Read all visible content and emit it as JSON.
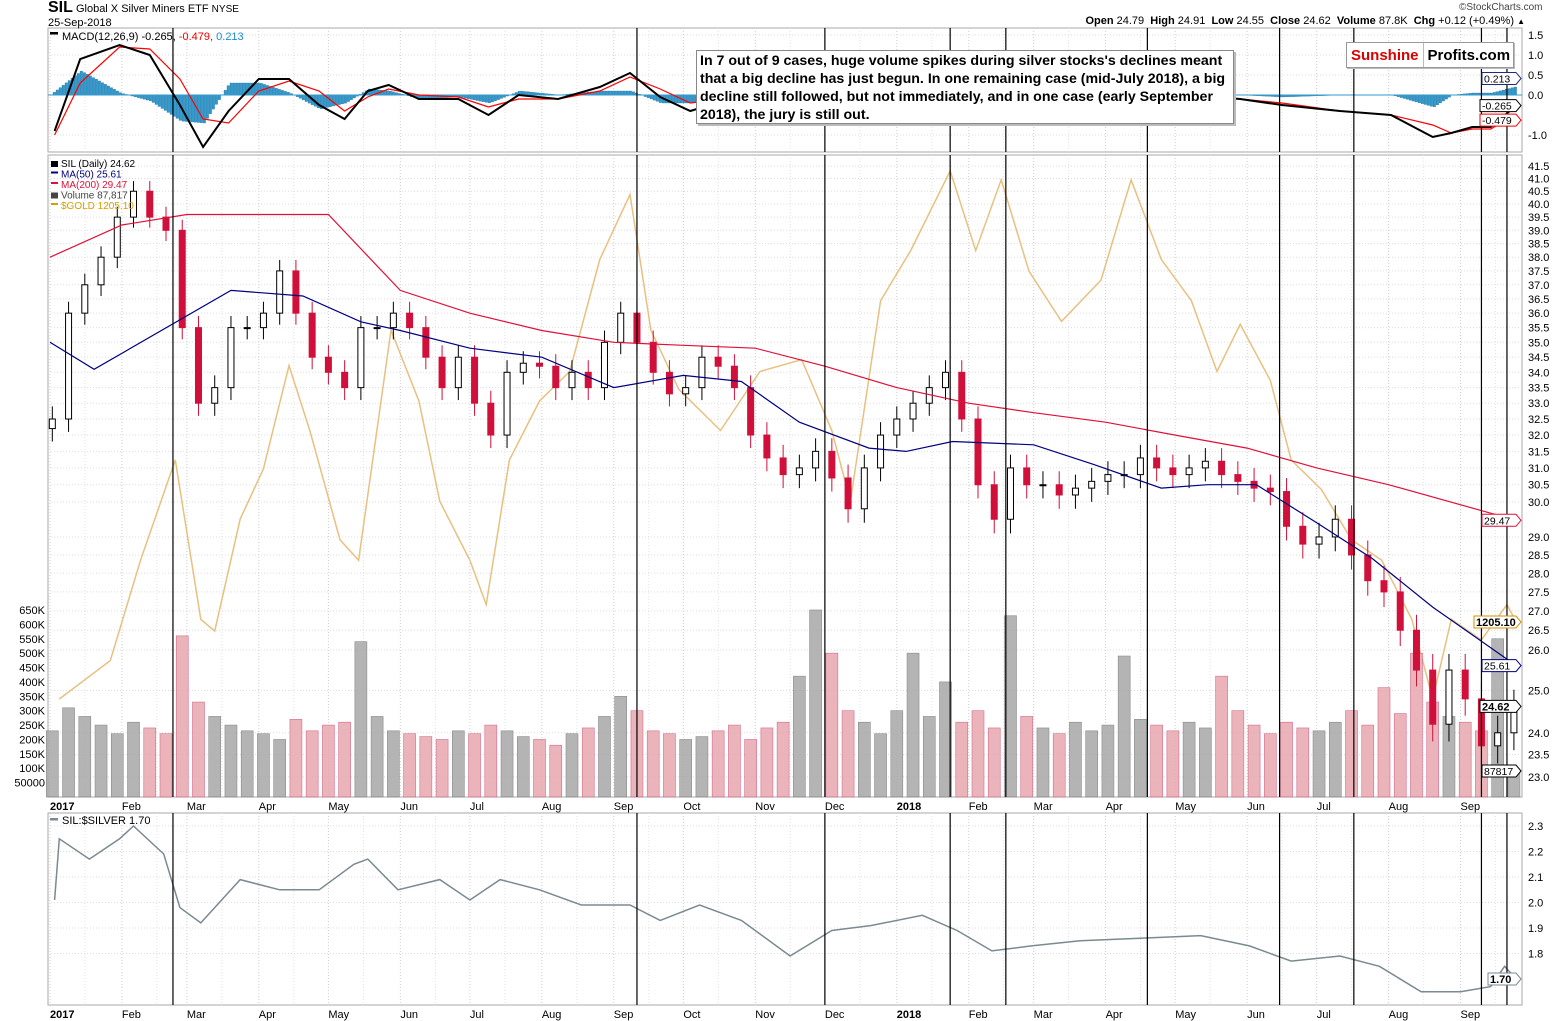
{
  "header": {
    "symbol": "SIL",
    "name": "Global X Silver Miners ETF",
    "exchange": "NYSE",
    "date": "25-Sep-2018",
    "copyright": "©StockCharts.com",
    "open_label": "Open",
    "open": "24.79",
    "high_label": "High",
    "high": "24.91",
    "low_label": "Low",
    "low": "24.55",
    "close_label": "Close",
    "close": "24.62",
    "volume_label": "Volume",
    "volume": "87.8K",
    "chg_label": "Chg",
    "chg": "+0.12 (+0.49%)",
    "chg_icon": "triangle-up-icon"
  },
  "annotation": "In 7 out of 9 cases, huge volume spikes during silver stocks's declines meant that a big decline has just begun. In one remaining case (mid-July 2018), a big decline still followed, but not immediately, and in one case (early September 2018), the jury is still out.",
  "logo": {
    "part1": "Sunshine",
    "part2": "Profits.com"
  },
  "colors": {
    "macd": "#000000",
    "signal": "#ff0000",
    "histogram": "#3399cc",
    "up_candle": "#000000",
    "down_candle": "#d0103a",
    "ma50": "#000080",
    "ma200": "#e0103a",
    "gold": "#e8c080",
    "volume_up": "#a8a8a8",
    "volume_down": "#e8a8b0",
    "ratio": "#7a8a90",
    "event_line": "#000000"
  },
  "chart_data": [
    {
      "type": "line",
      "panel": "macd",
      "legend": {
        "label": "MACD(12,26,9)",
        "macd": "-0.265",
        "signal": "-0.479",
        "histogram": "0.213"
      },
      "ylim": [
        -1.3,
        1.6
      ],
      "y_ticks": [
        "1.5",
        "1.0",
        "0.5",
        "0.0",
        "-1.0"
      ],
      "tags": {
        "histogram": "0.213",
        "macd": "-0.265",
        "signal": "-0.479"
      },
      "dates": [
        "2017-01-03",
        "2017-01-14",
        "2017-01-31",
        "2017-02-13",
        "2017-02-26",
        "2017-03-08",
        "2017-03-19",
        "2017-04-01",
        "2017-04-14",
        "2017-04-27",
        "2017-05-08",
        "2017-05-18",
        "2017-05-27",
        "2017-06-09",
        "2017-06-26",
        "2017-07-09",
        "2017-07-22",
        "2017-08-08",
        "2017-08-26",
        "2017-09-08",
        "2017-09-21",
        "2017-10-04",
        "2017-10-26",
        "2017-11-16",
        "2017-12-04",
        "2017-12-25",
        "2018-01-16",
        "2018-02-04",
        "2018-02-28",
        "2018-03-30",
        "2018-04-25",
        "2018-05-29",
        "2018-06-16",
        "2018-07-11",
        "2018-08-02",
        "2018-08-20",
        "2018-08-28",
        "2018-09-06",
        "2018-09-14",
        "2018-09-25"
      ],
      "series": [
        {
          "name": "MACD",
          "values": [
            -0.9,
            0.9,
            1.25,
            1.0,
            -0.25,
            -1.3,
            -0.4,
            0.4,
            0.4,
            -0.25,
            -0.6,
            0.1,
            0.25,
            -0.1,
            -0.1,
            -0.5,
            0,
            -0.1,
            0.2,
            0.55,
            -0.05,
            -0.4,
            0.0,
            -0.5,
            -0.4,
            0.25,
            0.4,
            -0.4,
            -0.3,
            0.0,
            0.05,
            -0.1,
            -0.25,
            -0.4,
            -0.5,
            -1.05,
            -0.95,
            -0.8,
            -0.8,
            -0.265
          ]
        },
        {
          "name": "Signal",
          "values": [
            -1.0,
            0.3,
            1.2,
            1.15,
            0.4,
            -0.6,
            -0.7,
            0.1,
            0.35,
            0.1,
            -0.4,
            -0.05,
            0.15,
            0.0,
            -0.05,
            -0.3,
            -0.1,
            -0.1,
            0.1,
            0.45,
            0.15,
            -0.2,
            -0.05,
            -0.4,
            -0.3,
            0.0,
            0.25,
            0.0,
            -0.2,
            -0.2,
            0.0,
            -0.1,
            -0.2,
            -0.4,
            -0.5,
            -0.75,
            -0.95,
            -0.85,
            -0.85,
            -0.479
          ]
        }
      ]
    },
    {
      "type": "candlestick",
      "panel": "price",
      "scale": "log",
      "legend": [
        {
          "label": "SIL (Daily) 24.62",
          "icon": "candlestick-icon"
        },
        {
          "label": "MA(50) 25.61"
        },
        {
          "label": "MA(200) 29.47"
        },
        {
          "label": "Volume 87,817",
          "icon": "volume-bars-icon"
        },
        {
          "label": "$GOLD 1205.10"
        }
      ],
      "ylim": [
        23.0,
        41.5
      ],
      "y_ticks": [
        "41.5",
        "41.0",
        "40.5",
        "40.0",
        "39.5",
        "39.0",
        "38.5",
        "38.0",
        "37.5",
        "37.0",
        "36.5",
        "36.0",
        "35.5",
        "35.0",
        "34.5",
        "34.0",
        "33.5",
        "33.0",
        "32.5",
        "32.0",
        "31.5",
        "31.0",
        "30.5",
        "30.0",
        "29.0",
        "28.5",
        "28.0",
        "27.5",
        "27.0",
        "26.5",
        "26.0",
        "25.0",
        "24.0",
        "23.5",
        "23.0"
      ],
      "volume_ticks": [
        "650K",
        "600K",
        "550K",
        "500K",
        "450K",
        "400K",
        "350K",
        "300K",
        "250K",
        "200K",
        "150K",
        "100K",
        "50000"
      ],
      "tags": {
        "ma200": "29.47",
        "gold": "1205.10",
        "ma50": "25.61",
        "close": "24.62",
        "volume": "87817"
      },
      "x_labels": [
        {
          "date": "2017-01-01",
          "label": "2017",
          "bold": true
        },
        {
          "date": "2017-02-01",
          "label": "Feb"
        },
        {
          "date": "2017-03-01",
          "label": "Mar"
        },
        {
          "date": "2017-04-01",
          "label": "Apr"
        },
        {
          "date": "2017-05-01",
          "label": "May"
        },
        {
          "date": "2017-06-01",
          "label": "Jun"
        },
        {
          "date": "2017-07-01",
          "label": "Jul"
        },
        {
          "date": "2017-08-01",
          "label": "Aug"
        },
        {
          "date": "2017-09-01",
          "label": "Sep"
        },
        {
          "date": "2017-10-01",
          "label": "Oct"
        },
        {
          "date": "2017-11-01",
          "label": "Nov"
        },
        {
          "date": "2017-12-01",
          "label": "Dec"
        },
        {
          "date": "2018-01-01",
          "label": "2018",
          "bold": true
        },
        {
          "date": "2018-02-01",
          "label": "Feb"
        },
        {
          "date": "2018-03-01",
          "label": "Mar"
        },
        {
          "date": "2018-04-01",
          "label": "Apr"
        },
        {
          "date": "2018-05-01",
          "label": "May"
        },
        {
          "date": "2018-06-01",
          "label": "Jun"
        },
        {
          "date": "2018-07-01",
          "label": "Jul"
        },
        {
          "date": "2018-08-01",
          "label": "Aug"
        },
        {
          "date": "2018-09-01",
          "label": "Sep"
        }
      ],
      "weekly_dates": [
        "2017-01-02",
        "2017-01-09",
        "2017-01-16",
        "2017-01-23",
        "2017-01-30",
        "2017-02-06",
        "2017-02-13",
        "2017-02-20",
        "2017-02-27",
        "2017-03-06",
        "2017-03-13",
        "2017-03-20",
        "2017-03-27",
        "2017-04-03",
        "2017-04-10",
        "2017-04-17",
        "2017-04-24",
        "2017-05-01",
        "2017-05-08",
        "2017-05-15",
        "2017-05-22",
        "2017-05-29",
        "2017-06-05",
        "2017-06-12",
        "2017-06-19",
        "2017-06-26",
        "2017-07-03",
        "2017-07-10",
        "2017-07-17",
        "2017-07-24",
        "2017-07-31",
        "2017-08-07",
        "2017-08-14",
        "2017-08-21",
        "2017-08-28",
        "2017-09-04",
        "2017-09-11",
        "2017-09-18",
        "2017-09-25",
        "2017-10-02",
        "2017-10-09",
        "2017-10-16",
        "2017-10-23",
        "2017-10-30",
        "2017-11-06",
        "2017-11-13",
        "2017-11-20",
        "2017-11-27",
        "2017-12-04",
        "2017-12-11",
        "2017-12-18",
        "2017-12-25",
        "2018-01-01",
        "2018-01-08",
        "2018-01-15",
        "2018-01-22",
        "2018-01-29",
        "2018-02-05",
        "2018-02-12",
        "2018-02-19",
        "2018-02-26",
        "2018-03-05",
        "2018-03-12",
        "2018-03-19",
        "2018-03-26",
        "2018-04-02",
        "2018-04-09",
        "2018-04-16",
        "2018-04-23",
        "2018-04-30",
        "2018-05-07",
        "2018-05-14",
        "2018-05-21",
        "2018-05-28",
        "2018-06-04",
        "2018-06-11",
        "2018-06-18",
        "2018-06-25",
        "2018-07-02",
        "2018-07-09",
        "2018-07-16",
        "2018-07-23",
        "2018-07-30",
        "2018-08-06",
        "2018-08-13",
        "2018-08-20",
        "2018-08-27",
        "2018-09-03",
        "2018-09-10",
        "2018-09-17",
        "2018-09-24"
      ],
      "close": [
        32.5,
        36,
        37,
        38,
        39.5,
        40.5,
        39.5,
        39,
        35.5,
        33,
        33.5,
        35.5,
        35.5,
        36,
        37.5,
        36,
        34.5,
        34,
        33.5,
        35.5,
        35.5,
        36,
        35.5,
        34.5,
        33.5,
        34.5,
        33,
        32,
        34,
        34.3,
        34.2,
        33.5,
        34,
        33.5,
        35,
        36,
        35,
        34,
        33.3,
        33.5,
        34.5,
        34.2,
        33.5,
        32,
        31.3,
        30.8,
        31,
        31.5,
        30.7,
        29.8,
        31,
        32,
        32.5,
        33,
        33.5,
        34,
        32.5,
        30.5,
        29.5,
        31,
        30.5,
        30.5,
        30.2,
        30.4,
        30.6,
        30.8,
        30.8,
        31.3,
        31,
        30.8,
        31,
        31.2,
        30.8,
        30.6,
        30.4,
        30.3,
        29.3,
        28.8,
        29,
        29.5,
        28.5,
        27.8,
        27.5,
        26.5,
        25.5,
        24.2,
        25.5,
        24.8,
        23.7,
        24,
        24.62
      ],
      "volume_k": [
        230,
        310,
        280,
        250,
        220,
        260,
        240,
        220,
        560,
        330,
        280,
        250,
        230,
        220,
        200,
        270,
        230,
        250,
        260,
        540,
        280,
        230,
        220,
        210,
        200,
        230,
        220,
        250,
        230,
        210,
        200,
        180,
        220,
        240,
        280,
        350,
        300,
        230,
        220,
        200,
        210,
        230,
        250,
        200,
        240,
        260,
        420,
        650,
        500,
        300,
        260,
        220,
        300,
        500,
        280,
        400,
        260,
        300,
        240,
        630,
        280,
        240,
        220,
        260,
        230,
        250,
        490,
        270,
        250,
        230,
        260,
        240,
        420,
        300,
        250,
        220,
        260,
        240,
        230,
        260,
        300,
        250,
        380,
        290,
        500,
        330,
        280,
        260,
        230,
        550,
        88
      ],
      "ma50": {
        "dates": [
          "2017-01-01",
          "2017-01-20",
          "2017-03-20",
          "2017-04-20",
          "2017-05-15",
          "2017-06-01",
          "2017-07-01",
          "2017-08-01",
          "2017-09-01",
          "2017-10-01",
          "2017-10-26",
          "2017-11-20",
          "2017-12-20",
          "2018-01-05",
          "2018-01-25",
          "2018-03-01",
          "2018-03-27",
          "2018-04-25",
          "2018-05-15",
          "2018-06-05",
          "2018-07-01",
          "2018-07-25",
          "2018-08-20",
          "2018-09-25"
        ],
        "values": [
          35.0,
          34.1,
          36.8,
          36.6,
          35.7,
          35.4,
          34.8,
          34.5,
          33.5,
          33.9,
          33.7,
          32.4,
          31.6,
          31.5,
          31.8,
          31.7,
          31.1,
          30.4,
          30.5,
          30.5,
          29.4,
          28.4,
          27.1,
          25.61
        ]
      },
      "ma200": {
        "dates": [
          "2017-01-01",
          "2017-02-01",
          "2017-03-01",
          "2017-04-01",
          "2017-05-01",
          "2017-06-01",
          "2017-07-01",
          "2017-08-01",
          "2017-09-01",
          "2017-10-01",
          "2017-11-01",
          "2017-12-01",
          "2018-01-01",
          "2018-02-01",
          "2018-03-01",
          "2018-04-01",
          "2018-05-01",
          "2018-06-01",
          "2018-07-01",
          "2018-08-01",
          "2018-09-25"
        ],
        "values": [
          38.0,
          39.2,
          39.6,
          39.6,
          39.6,
          36.8,
          36.0,
          35.4,
          35.0,
          34.9,
          34.8,
          34.2,
          33.5,
          33.0,
          32.7,
          32.4,
          32.0,
          31.6,
          31.0,
          30.5,
          29.47
        ]
      },
      "gold": {
        "dates": [
          "2017-01-05",
          "2017-01-27",
          "2017-02-09",
          "2017-02-24",
          "2017-03-07",
          "2017-03-13",
          "2017-03-24",
          "2017-04-03",
          "2017-04-14",
          "2017-04-23",
          "2017-05-06",
          "2017-05-14",
          "2017-05-28",
          "2017-06-09",
          "2017-06-18",
          "2017-07-01",
          "2017-07-08",
          "2017-07-18",
          "2017-07-31",
          "2017-08-13",
          "2017-08-26",
          "2017-09-08",
          "2017-09-17",
          "2017-09-29",
          "2017-10-17",
          "2017-11-03",
          "2017-11-21",
          "2017-12-04",
          "2017-12-12",
          "2017-12-25",
          "2018-01-07",
          "2018-01-24",
          "2018-02-04",
          "2018-02-15",
          "2018-02-27",
          "2018-03-13",
          "2018-03-30",
          "2018-04-12",
          "2018-04-25",
          "2018-05-08",
          "2018-05-19",
          "2018-05-29",
          "2018-06-11",
          "2018-06-20",
          "2018-07-03",
          "2018-07-16",
          "2018-07-29",
          "2018-08-11",
          "2018-08-20",
          "2018-08-28",
          "2018-09-10",
          "2018-09-21",
          "2018-09-25"
        ],
        "values": [
          1179,
          1192,
          1226,
          1260,
          1206,
          1202,
          1240,
          1257,
          1292,
          1270,
          1233,
          1226,
          1304,
          1280,
          1246,
          1226,
          1211,
          1260,
          1280,
          1290,
          1328,
          1350,
          1304,
          1284,
          1270,
          1290,
          1294,
          1270,
          1246,
          1314,
          1331,
          1358,
          1331,
          1355,
          1324,
          1307,
          1321,
          1355,
          1328,
          1314,
          1290,
          1306,
          1287,
          1260,
          1250,
          1233,
          1226,
          1206,
          1179,
          1206,
          1199,
          1211,
          1205.1
        ]
      }
    },
    {
      "type": "line",
      "panel": "ratio",
      "legend": "SIL:$SILVER 1.70",
      "ylim": [
        1.6,
        2.35
      ],
      "y_ticks": [
        "2.3",
        "2.2",
        "2.1",
        "2.0",
        "1.9",
        "1.8"
      ],
      "tag": "1.70",
      "dates": [
        "2017-01-03",
        "2017-01-05",
        "2017-01-18",
        "2017-01-31",
        "2017-02-06",
        "2017-02-19",
        "2017-02-26",
        "2017-03-07",
        "2017-03-24",
        "2017-04-10",
        "2017-04-27",
        "2017-05-12",
        "2017-05-18",
        "2017-05-31",
        "2017-06-18",
        "2017-07-01",
        "2017-07-14",
        "2017-07-31",
        "2017-08-18",
        "2017-09-08",
        "2017-09-21",
        "2017-10-08",
        "2017-10-26",
        "2017-11-16",
        "2017-12-04",
        "2017-12-21",
        "2018-01-12",
        "2018-01-27",
        "2018-02-11",
        "2018-02-28",
        "2018-03-21",
        "2018-04-16",
        "2018-05-12",
        "2018-06-02",
        "2018-06-20",
        "2018-07-11",
        "2018-07-28",
        "2018-08-15",
        "2018-09-01",
        "2018-09-14",
        "2018-09-20",
        "2018-09-25"
      ],
      "values": [
        2.01,
        2.25,
        2.17,
        2.25,
        2.3,
        2.19,
        1.98,
        1.92,
        2.09,
        2.05,
        2.05,
        2.15,
        2.17,
        2.05,
        2.09,
        2.01,
        2.09,
        2.05,
        1.99,
        1.99,
        1.93,
        1.99,
        1.93,
        1.79,
        1.89,
        1.91,
        1.95,
        1.89,
        1.81,
        1.83,
        1.85,
        1.86,
        1.87,
        1.83,
        1.77,
        1.79,
        1.75,
        1.65,
        1.65,
        1.67,
        1.75,
        1.7
      ]
    }
  ],
  "event_lines": [
    "2017-02-23",
    "2017-09-11",
    "2017-12-01",
    "2018-01-24",
    "2018-02-17",
    "2018-04-19",
    "2018-06-15",
    "2018-07-17",
    "2018-09-10",
    "2018-09-21"
  ]
}
